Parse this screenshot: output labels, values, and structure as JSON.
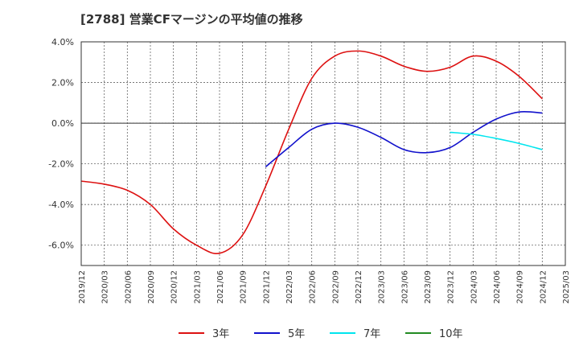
{
  "chart_data": {
    "type": "line",
    "title": "[2788]  営業CFマージンの平均値の推移",
    "ylim": [
      -7.0,
      4.0
    ],
    "y_ticks": [
      "4.0%",
      "2.0%",
      "0.0%",
      "-2.0%",
      "-4.0%",
      "-6.0%"
    ],
    "y_tick_values": [
      4,
      2,
      0,
      -2,
      -4,
      -6
    ],
    "x_ticks": [
      "2019/12",
      "2020/03",
      "2020/06",
      "2020/09",
      "2020/12",
      "2021/03",
      "2021/06",
      "2021/09",
      "2021/12",
      "2022/03",
      "2022/06",
      "2022/09",
      "2022/12",
      "2023/03",
      "2023/06",
      "2023/09",
      "2023/12",
      "2024/03",
      "2024/06",
      "2024/09",
      "2024/12",
      "2025/03"
    ],
    "grid": true,
    "legend_position": "bottom",
    "series": [
      {
        "name": "3年",
        "color": "#dd1111",
        "points": [
          [
            "2019/12",
            -2.85
          ],
          [
            "2020/03",
            -3.0
          ],
          [
            "2020/06",
            -3.3
          ],
          [
            "2020/09",
            -4.0
          ],
          [
            "2020/12",
            -5.2
          ],
          [
            "2021/03",
            -6.0
          ],
          [
            "2021/06",
            -6.4
          ],
          [
            "2021/09",
            -5.5
          ],
          [
            "2021/12",
            -3.1
          ],
          [
            "2022/03",
            -0.3
          ],
          [
            "2022/06",
            2.2
          ],
          [
            "2022/09",
            3.3
          ],
          [
            "2022/12",
            3.55
          ],
          [
            "2023/03",
            3.3
          ],
          [
            "2023/06",
            2.8
          ],
          [
            "2023/09",
            2.55
          ],
          [
            "2023/12",
            2.75
          ],
          [
            "2024/03",
            3.3
          ],
          [
            "2024/06",
            3.05
          ],
          [
            "2024/09",
            2.3
          ],
          [
            "2024/12",
            1.2
          ]
        ]
      },
      {
        "name": "5年",
        "color": "#1111cc",
        "points": [
          [
            "2021/12",
            -2.15
          ],
          [
            "2022/03",
            -1.2
          ],
          [
            "2022/06",
            -0.3
          ],
          [
            "2022/09",
            0.0
          ],
          [
            "2022/12",
            -0.2
          ],
          [
            "2023/03",
            -0.7
          ],
          [
            "2023/06",
            -1.3
          ],
          [
            "2023/09",
            -1.45
          ],
          [
            "2023/12",
            -1.2
          ],
          [
            "2024/03",
            -0.45
          ],
          [
            "2024/06",
            0.2
          ],
          [
            "2024/09",
            0.55
          ],
          [
            "2024/12",
            0.5
          ]
        ]
      },
      {
        "name": "7年",
        "color": "#00e5ee",
        "points": [
          [
            "2023/12",
            -0.45
          ],
          [
            "2024/03",
            -0.55
          ],
          [
            "2024/06",
            -0.75
          ],
          [
            "2024/09",
            -1.0
          ],
          [
            "2024/12",
            -1.3
          ]
        ]
      },
      {
        "name": "10年",
        "color": "#228b22",
        "points": []
      }
    ]
  }
}
